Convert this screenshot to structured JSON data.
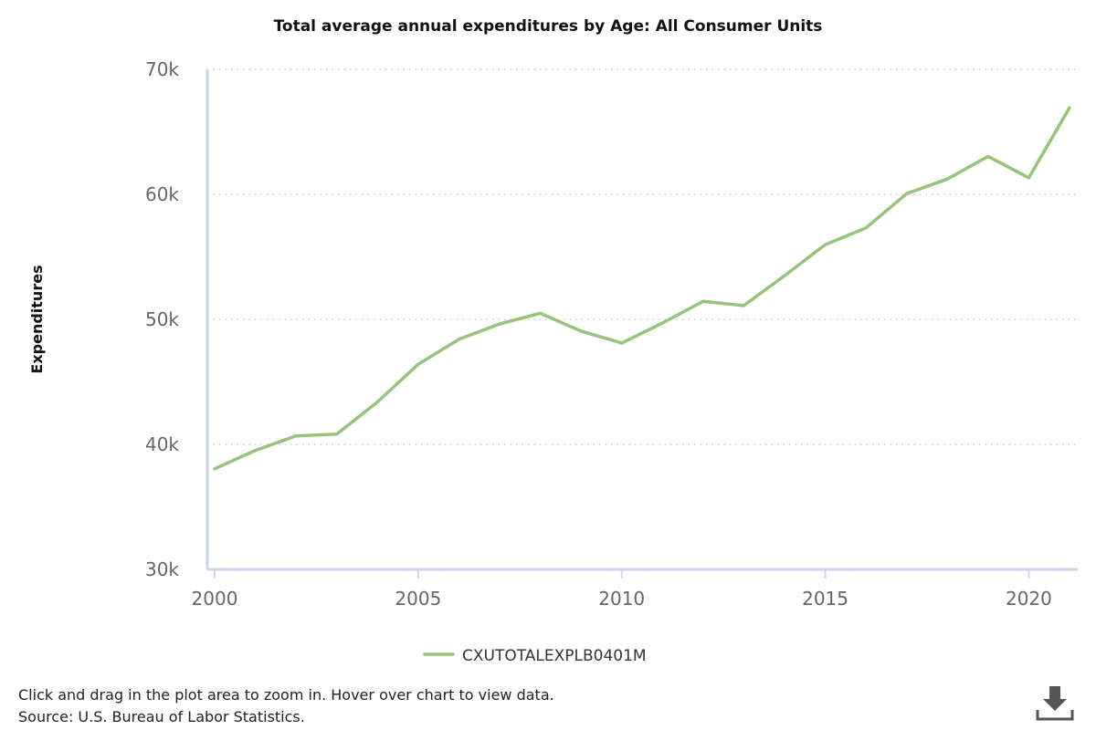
{
  "chart_data": {
    "type": "line",
    "title": "Total average annual expenditures by Age: All Consumer Units",
    "ylabel": "Expenditures",
    "xlabel": "",
    "xlim": [
      2000,
      2021
    ],
    "ylim": [
      30000,
      70000
    ],
    "x_ticks": [
      2000,
      2005,
      2010,
      2015,
      2020
    ],
    "y_ticks": [
      30000,
      40000,
      50000,
      60000,
      70000
    ],
    "y_tick_labels": [
      "30k",
      "40k",
      "50k",
      "60k",
      "70k"
    ],
    "grid": "horizontal-dotted",
    "legend_position": "bottom-center",
    "series": [
      {
        "name": "CXUTOTALEXPLB0401M",
        "color": "#95c47a",
        "x": [
          2000,
          2001,
          2002,
          2003,
          2004,
          2005,
          2006,
          2007,
          2008,
          2009,
          2010,
          2011,
          2012,
          2013,
          2014,
          2015,
          2016,
          2017,
          2018,
          2019,
          2020,
          2021
        ],
        "values": [
          38045,
          39518,
          40677,
          40817,
          43395,
          46409,
          48398,
          49638,
          50486,
          49067,
          48109,
          49705,
          51442,
          51100,
          53495,
          55978,
          57311,
          60060,
          61224,
          63036,
          61332,
          66928
        ]
      }
    ]
  },
  "footer": {
    "hint": "Click and drag in the plot area to zoom in. Hover over chart to view data.",
    "source": "Source: U.S. Bureau of Labor Statistics."
  },
  "icons": {
    "download": "download-icon"
  }
}
